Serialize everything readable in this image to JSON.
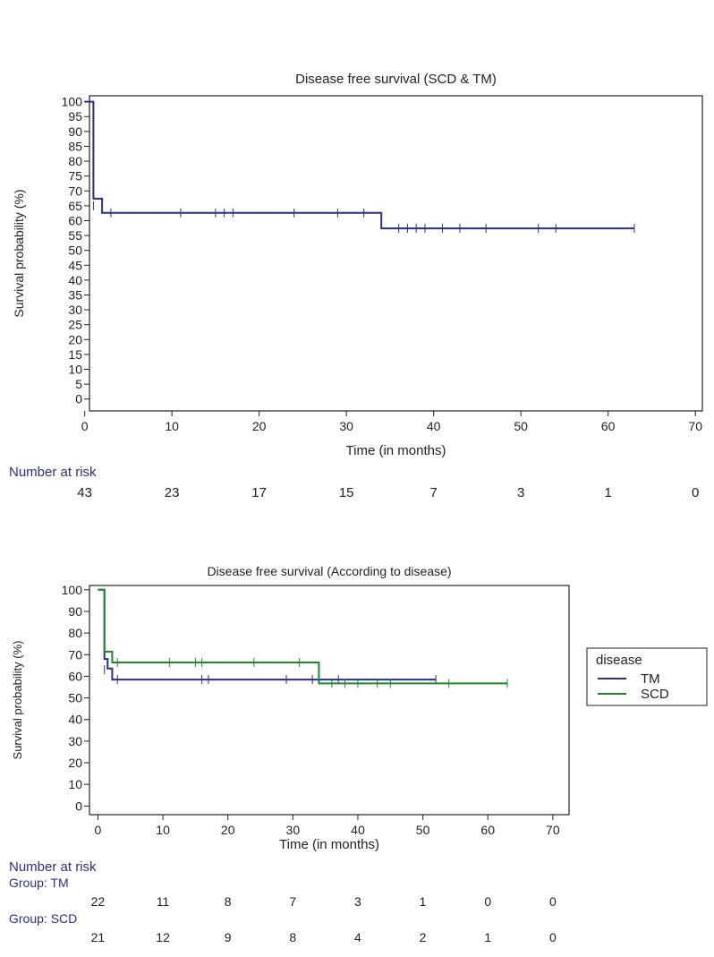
{
  "chart_data": [
    {
      "type": "line",
      "title": "Disease free survival (SCD & TM)",
      "xlabel": "Time (in months)",
      "ylabel": "Survival probability (%)",
      "xlim": [
        0,
        70
      ],
      "ylim": [
        0,
        100
      ],
      "x_ticks": [
        0,
        10,
        20,
        30,
        40,
        50,
        60,
        70
      ],
      "y_ticks": [
        0,
        5,
        10,
        15,
        20,
        25,
        30,
        35,
        40,
        45,
        50,
        55,
        60,
        65,
        70,
        75,
        80,
        85,
        90,
        95,
        100
      ],
      "series": [
        {
          "color": "#2b2f8a",
          "steps": [
            [
              0,
              100
            ],
            [
              1,
              100
            ],
            [
              1,
              67.4
            ],
            [
              2,
              67.4
            ],
            [
              2,
              62.6
            ],
            [
              34,
              62.6
            ],
            [
              34,
              57.4
            ],
            [
              63,
              57.4
            ]
          ],
          "censored": [
            [
              1,
              65
            ],
            [
              3,
              62.6
            ],
            [
              11,
              62.6
            ],
            [
              15,
              62.6
            ],
            [
              16,
              62.6
            ],
            [
              17,
              62.6
            ],
            [
              24,
              62.6
            ],
            [
              29,
              62.6
            ],
            [
              32,
              62.6
            ],
            [
              36,
              57.4
            ],
            [
              37,
              57.4
            ],
            [
              38,
              57.4
            ],
            [
              39,
              57.4
            ],
            [
              41,
              57.4
            ],
            [
              43,
              57.4
            ],
            [
              46,
              57.4
            ],
            [
              52,
              57.4
            ],
            [
              54,
              57.4
            ],
            [
              63,
              57.4
            ]
          ]
        }
      ],
      "risk_table": {
        "label": "Number at risk",
        "rows": [
          {
            "group": "",
            "values": [
              "43",
              "23",
              "17",
              "15",
              "7",
              "3",
              "1",
              "0"
            ]
          }
        ]
      }
    },
    {
      "type": "line",
      "title": "Disease free survival (According to disease)",
      "xlabel": "Time (in months)",
      "ylabel": "Survival probability (%)",
      "xlim": [
        0,
        70
      ],
      "ylim": [
        0,
        100
      ],
      "x_ticks": [
        0,
        10,
        20,
        30,
        40,
        50,
        60,
        70
      ],
      "y_ticks": [
        0,
        10,
        20,
        30,
        40,
        50,
        60,
        70,
        80,
        90,
        100
      ],
      "legend": {
        "title": "disease",
        "position": "right"
      },
      "series": [
        {
          "name": "TM",
          "color": "#2b2f8a",
          "steps": [
            [
              0,
              100
            ],
            [
              1,
              100
            ],
            [
              1,
              68
            ],
            [
              1.5,
              68
            ],
            [
              1.5,
              63.6
            ],
            [
              2.2,
              63.6
            ],
            [
              2.2,
              58.5
            ],
            [
              52,
              58.5
            ]
          ],
          "censored": [
            [
              1,
              63
            ],
            [
              3,
              58.5
            ],
            [
              16,
              58.5
            ],
            [
              17,
              58.5
            ],
            [
              29,
              58.5
            ],
            [
              33,
              58.5
            ],
            [
              37,
              58.5
            ],
            [
              52,
              58.5
            ]
          ]
        },
        {
          "name": "SCD",
          "color": "#1f8a2a",
          "steps": [
            [
              0,
              100
            ],
            [
              1,
              100
            ],
            [
              1,
              71.4
            ],
            [
              2.2,
              71.4
            ],
            [
              2.2,
              66.4
            ],
            [
              34,
              66.4
            ],
            [
              34,
              56.7
            ],
            [
              63,
              56.7
            ]
          ],
          "censored": [
            [
              3,
              66.4
            ],
            [
              11,
              66.4
            ],
            [
              15,
              66.4
            ],
            [
              16,
              66.4
            ],
            [
              24,
              66.4
            ],
            [
              31,
              66.4
            ],
            [
              36,
              56.7
            ],
            [
              38,
              56.7
            ],
            [
              40,
              56.7
            ],
            [
              43,
              56.7
            ],
            [
              45,
              56.7
            ],
            [
              54,
              56.7
            ],
            [
              63,
              56.7
            ]
          ]
        }
      ],
      "risk_table": {
        "label": "Number at risk",
        "rows": [
          {
            "group": "Group: TM",
            "values": [
              "22",
              "11",
              "8",
              "7",
              "3",
              "1",
              "0",
              "0"
            ]
          },
          {
            "group": "Group: SCD",
            "values": [
              "21",
              "12",
              "9",
              "8",
              "4",
              "2",
              "1",
              "0"
            ]
          }
        ]
      }
    }
  ]
}
